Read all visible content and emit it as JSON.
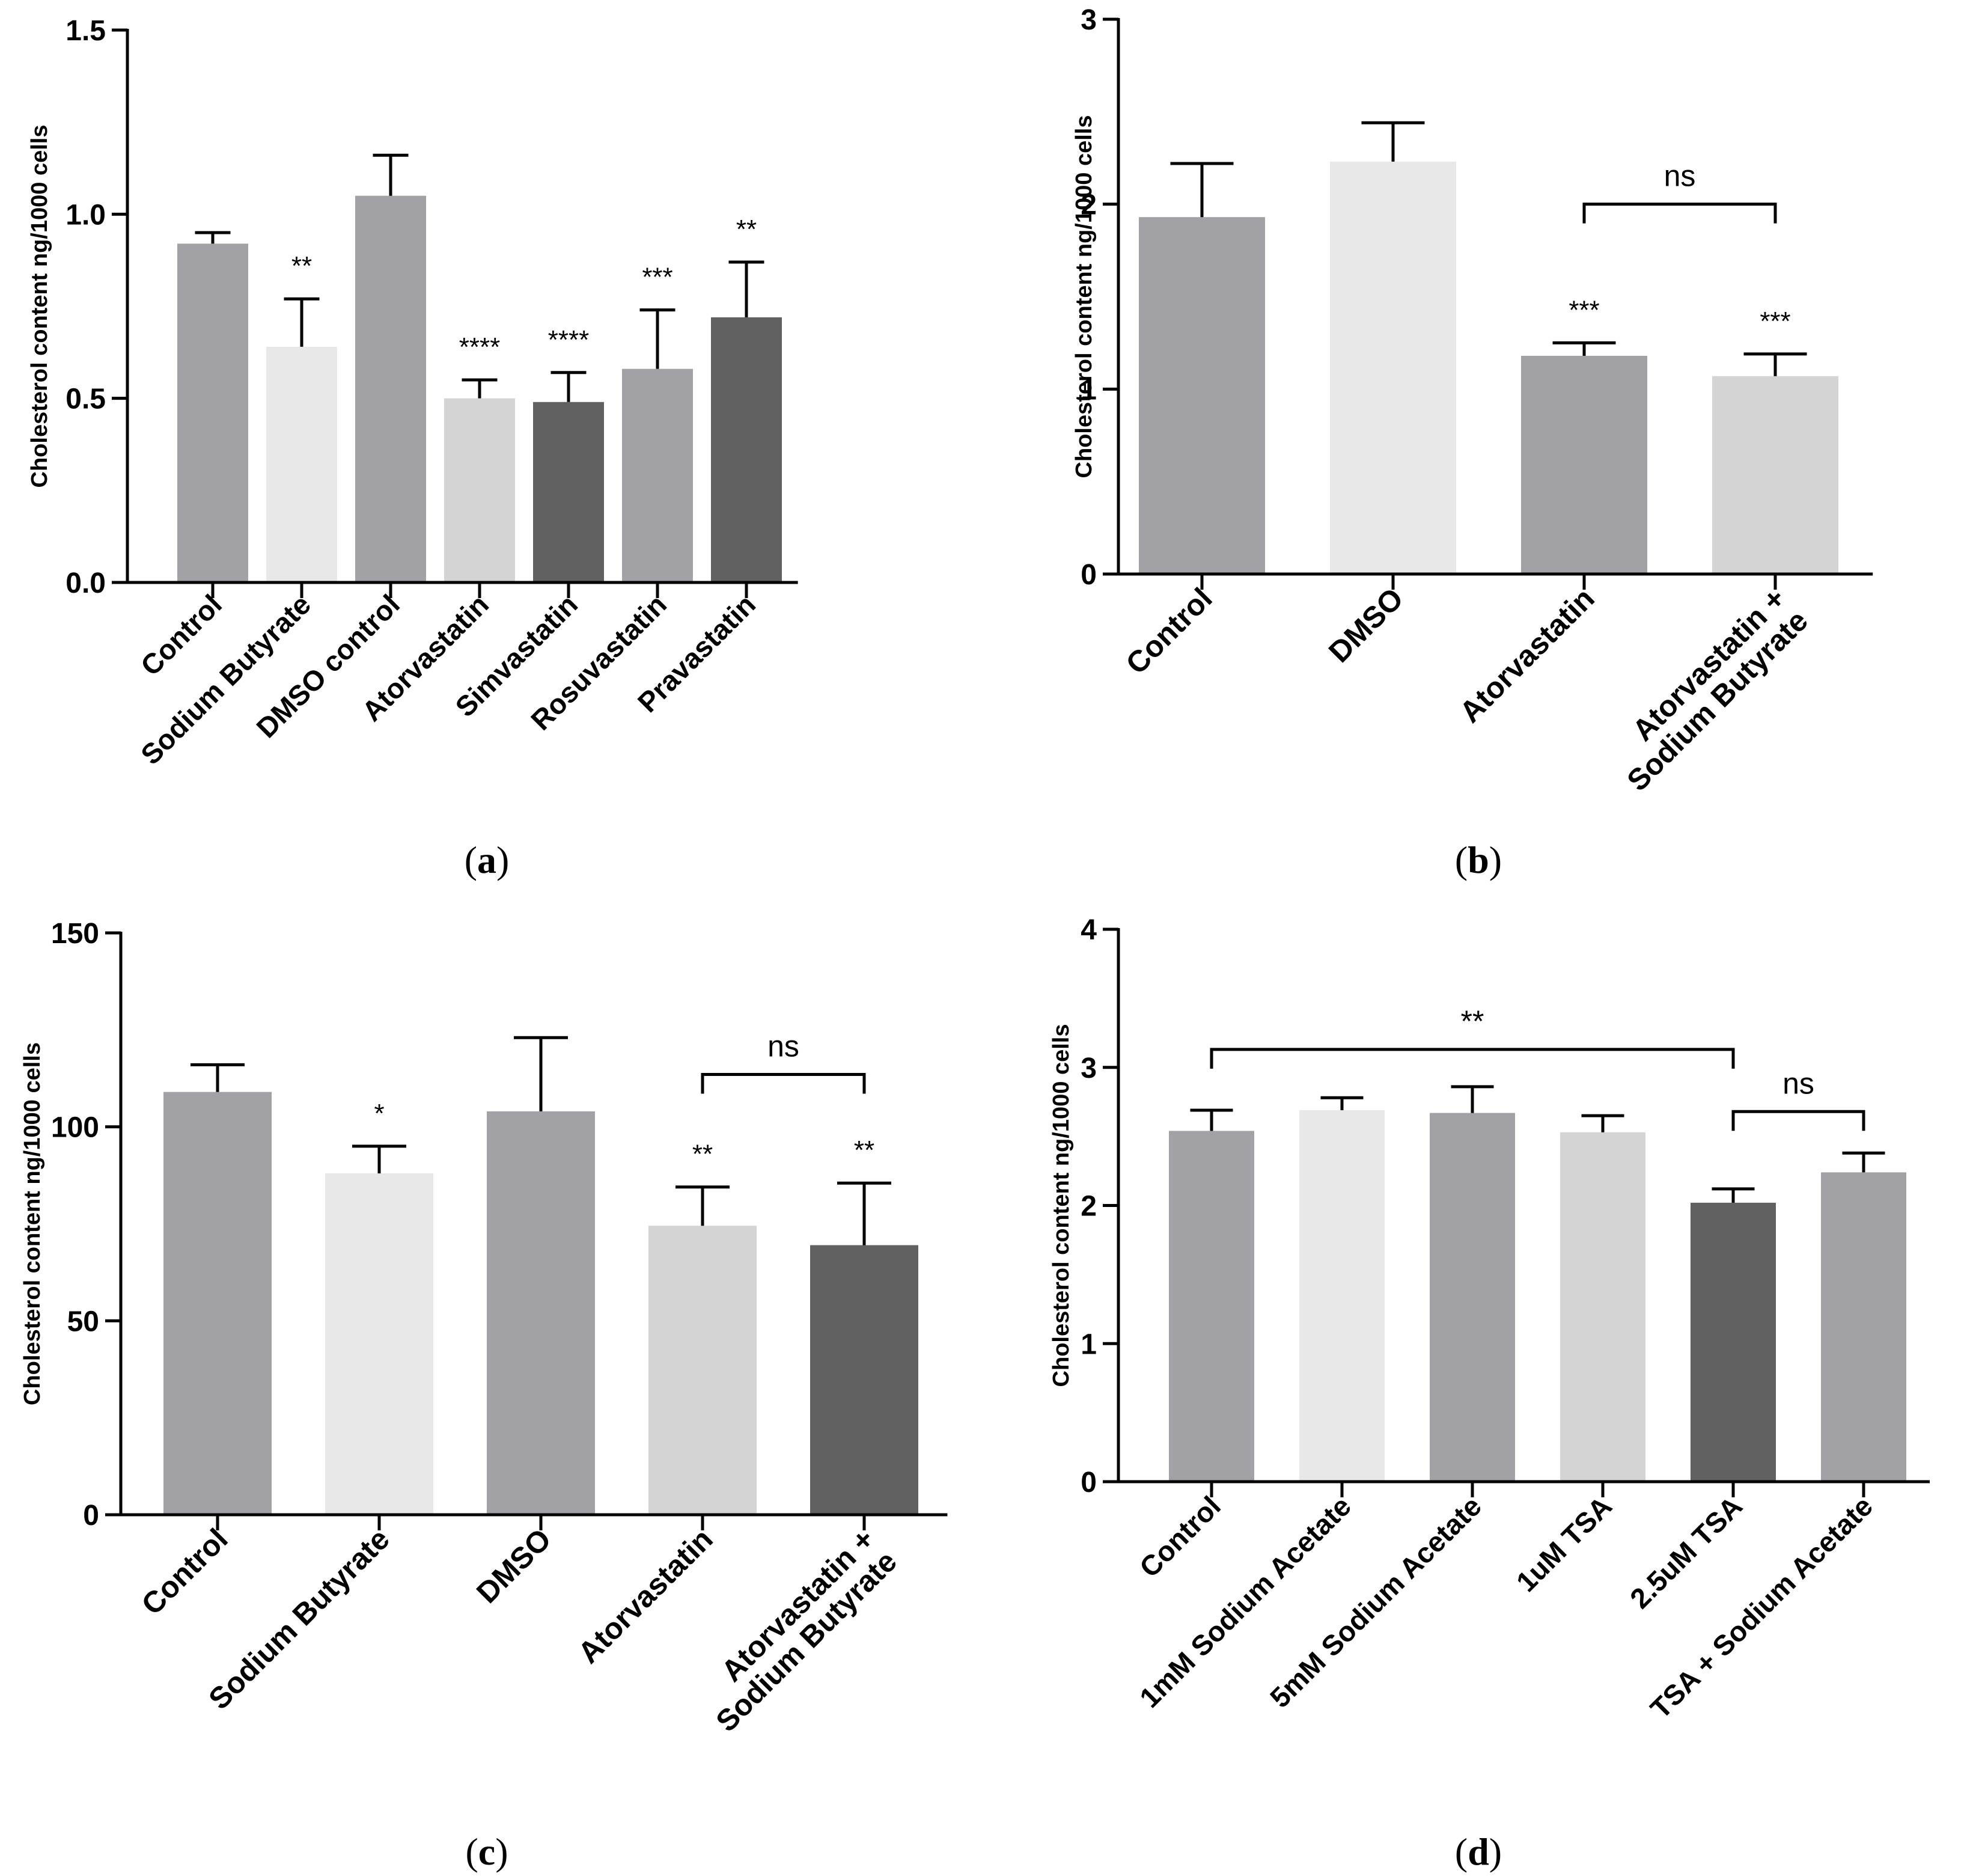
{
  "panels": [
    {
      "caption_letter": "a",
      "bracket_labels": []
    },
    {
      "caption_letter": "b",
      "bracket_labels": [
        "ns"
      ]
    },
    {
      "caption_letter": "c",
      "bracket_labels": [
        "ns"
      ]
    },
    {
      "caption_letter": "d",
      "bracket_labels": [
        "**",
        "ns"
      ]
    }
  ],
  "chart_data": [
    {
      "type": "bar",
      "ylabel": "Cholesterol content ng/1000 cells",
      "ylim": [
        0,
        1.5
      ],
      "y_ticks": [
        "0.0",
        "0.5",
        "1.0",
        "1.5"
      ],
      "y_tick_values": [
        0,
        0.5,
        1.0,
        1.5
      ],
      "categories": [
        "Control",
        "Sodium Butyrate",
        "DMSO control",
        "Atorvastatin",
        "Simvastatin",
        "Rosuvastatin",
        "Pravastatin"
      ],
      "values": [
        0.92,
        0.64,
        1.05,
        0.5,
        0.49,
        0.58,
        0.72
      ],
      "errors": [
        0.03,
        0.13,
        0.11,
        0.05,
        0.08,
        0.16,
        0.15
      ],
      "significance": [
        "",
        "**",
        "",
        "****",
        "****",
        "***",
        "**"
      ],
      "colors": [
        "#a2a1a6",
        "#e8e8e8",
        "#a2a1a6",
        "#d4d4d4",
        "#616161",
        "#a2a1a6",
        "#616161"
      ],
      "brackets": []
    },
    {
      "type": "bar",
      "ylabel": "Cholesterol content ng/1000 cells",
      "ylim": [
        0,
        3
      ],
      "y_ticks": [
        "0",
        "1",
        "2",
        "3"
      ],
      "y_tick_values": [
        0,
        1,
        2,
        3
      ],
      "categories": [
        "Control",
        "DMSO",
        "Atorvastatin",
        "Atorvastatin +\nSodium Butyrate"
      ],
      "values": [
        1.93,
        2.23,
        1.18,
        1.07
      ],
      "errors": [
        0.29,
        0.21,
        0.07,
        0.12
      ],
      "significance": [
        "",
        "",
        "***",
        "***"
      ],
      "colors": [
        "#a2a1a6",
        "#e8e8e8",
        "#a2a1a6",
        "#d4d4d4"
      ],
      "brackets": [
        {
          "from": 2,
          "to": 3,
          "y": 2.0,
          "label": "ns"
        }
      ]
    },
    {
      "type": "bar",
      "ylabel": "Cholesterol content ng/1000 cells",
      "ylim": [
        0,
        150
      ],
      "y_ticks": [
        "0",
        "50",
        "100",
        "150"
      ],
      "y_tick_values": [
        0,
        50,
        100,
        150
      ],
      "categories": [
        "Control",
        "Sodium Butyrate",
        "DMSO",
        "Atorvastatin",
        "Atorvastatin +\nSodium Butyrate"
      ],
      "values": [
        109,
        88,
        104,
        74.5,
        69.5
      ],
      "errors": [
        7,
        7,
        19,
        10,
        16
      ],
      "significance": [
        "",
        "*",
        "",
        "**",
        "**"
      ],
      "colors": [
        "#a2a1a6",
        "#e8e8e8",
        "#a2a1a6",
        "#d4d4d4",
        "#616161"
      ],
      "brackets": [
        {
          "from": 3,
          "to": 4,
          "y": 113.5,
          "label": "ns"
        }
      ]
    },
    {
      "type": "bar",
      "ylabel": "Cholesterol content ng/1000 cells",
      "ylim": [
        0,
        4
      ],
      "y_ticks": [
        "0",
        "1",
        "2",
        "3",
        "4"
      ],
      "y_tick_values": [
        0,
        1,
        2,
        3,
        4
      ],
      "categories": [
        "Control",
        "1mM Sodium Acetate",
        "5mM Sodium Acetate",
        "1uM TSA",
        "2.5uM TSA",
        "TSA + Sodium Acetate"
      ],
      "values": [
        2.54,
        2.69,
        2.67,
        2.53,
        2.02,
        2.24
      ],
      "errors": [
        0.15,
        0.09,
        0.19,
        0.12,
        0.1,
        0.14
      ],
      "significance": [
        "",
        "",
        "",
        "",
        "",
        ""
      ],
      "colors": [
        "#a2a1a6",
        "#e8e8e8",
        "#a2a1a6",
        "#d4d4d4",
        "#616161",
        "#a2a1a6"
      ],
      "brackets": [
        {
          "from": 0,
          "to": 4,
          "y": 3.13,
          "label": "**"
        },
        {
          "from": 4,
          "to": 5,
          "y": 2.68,
          "label": "ns"
        }
      ]
    }
  ]
}
